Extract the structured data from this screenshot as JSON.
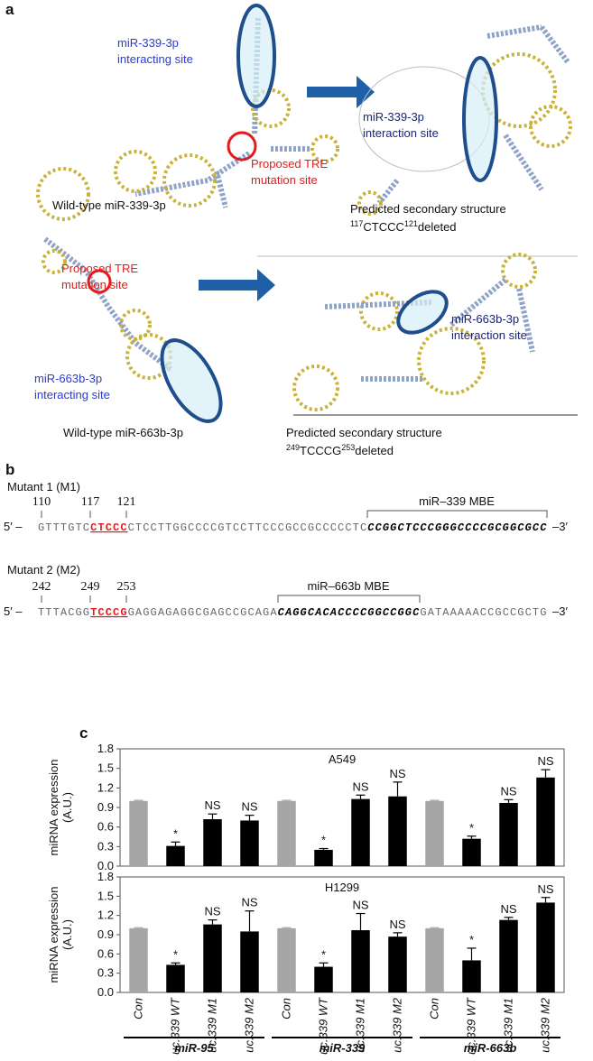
{
  "panel_a": {
    "label": "a",
    "row1": {
      "left_site": [
        "miR-339-3p",
        "interacting site"
      ],
      "tre": [
        "Proposed TRE",
        "mutation site"
      ],
      "wild_type": "Wild-type miR-339-3p",
      "right_site": [
        "miR-339-3p",
        "interaction site"
      ],
      "predicted": "Predicted secondary structure",
      "deleted": {
        "start": "117",
        "seq": "CTCCC",
        "end": "121",
        "suffix": "deleted"
      }
    },
    "row2": {
      "tre": [
        "Proposed TRE",
        "mutation site"
      ],
      "left_site": [
        "miR-663b-3p",
        "interacting site"
      ],
      "wild_type": "Wild-type miR-663b-3p",
      "right_site": [
        "miR-663b-3p",
        "interaction site"
      ],
      "predicted": "Predicted secondary structure",
      "deleted": {
        "start": "249",
        "seq": "TCCCG",
        "end": "253",
        "suffix": "deleted"
      }
    }
  },
  "panel_b": {
    "label": "b",
    "mutants": [
      {
        "title": "Mutant 1 (M1)",
        "positions": [
          "110",
          "117",
          "121"
        ],
        "mbe": "miR–339 MBE",
        "five": "5′ –",
        "three": "–3′",
        "parts": [
          "GTTTGTC",
          "CTCCC",
          "CTCCTTGGCCCCGTCCTTCCCGCCGCCCCCTC",
          "CCGGCTCCCGGGCCCCGCGGCGCC"
        ]
      },
      {
        "title": "Mutant 2 (M2)",
        "positions": [
          "242",
          "249",
          "253"
        ],
        "mbe": "miR–663b MBE",
        "five": "5′ –",
        "three": "–3′",
        "parts": [
          "TTTACGG",
          "TCCCG",
          "GAGGAGAGGCGAGCCGCAGA",
          "CAGGCACACCCCGGCCGGC",
          "GATAAAAACCGCCGCTG"
        ]
      }
    ]
  },
  "panel_c": {
    "label": "c"
  },
  "chart_data": [
    {
      "type": "bar",
      "title": "A549",
      "y_label": [
        "miRNA expression",
        "(A.U.)"
      ],
      "values": [
        1.0,
        0.31,
        0.72,
        0.7,
        1.0,
        0.25,
        1.03,
        1.07,
        1.0,
        0.42,
        0.97,
        1.36
      ],
      "errors": [
        0.01,
        0.06,
        0.08,
        0.08,
        0.01,
        0.02,
        0.06,
        0.22,
        0.01,
        0.04,
        0.05,
        0.12
      ],
      "annotations": [
        null,
        "*",
        "NS",
        "NS",
        null,
        "*",
        "NS",
        "NS",
        null,
        "*",
        "NS",
        "NS"
      ],
      "colors": [
        "#a6a6a6",
        "#000000",
        "#000000",
        "#000000",
        "#a6a6a6",
        "#000000",
        "#000000",
        "#000000",
        "#a6a6a6",
        "#000000",
        "#000000",
        "#000000"
      ],
      "ylim": [
        0,
        1.8
      ],
      "yticks": [
        {
          "value": 0,
          "label": "0.0"
        },
        0.3,
        0.6,
        0.9,
        1.2,
        1.5,
        1.8
      ]
    },
    {
      "type": "bar",
      "title": "H1299",
      "y_label": [
        "miRNA expression",
        "(A.U.)"
      ],
      "categories": [
        "Con",
        "uc.339 WT",
        "uc.339 M1",
        "uc.339 M2",
        "Con",
        "uc.339 WT",
        "uc.339 M1",
        "uc.339 M2",
        "Con",
        "uc.339 WT",
        "uc.339 M1",
        "uc.339 M2"
      ],
      "groups": [
        "miR-95",
        "miR-339",
        "miR-663b"
      ],
      "values": [
        1.0,
        0.43,
        1.06,
        0.95,
        1.0,
        0.4,
        0.97,
        0.87,
        1.0,
        0.5,
        1.13,
        1.4
      ],
      "errors": [
        0.01,
        0.03,
        0.07,
        0.32,
        0.01,
        0.06,
        0.26,
        0.06,
        0.01,
        0.19,
        0.04,
        0.08
      ],
      "annotations": [
        null,
        "*",
        "NS",
        "NS",
        null,
        "*",
        "NS",
        "NS",
        null,
        "*",
        "NS",
        "NS"
      ],
      "colors": [
        "#a6a6a6",
        "#000000",
        "#000000",
        "#000000",
        "#a6a6a6",
        "#000000",
        "#000000",
        "#000000",
        "#a6a6a6",
        "#000000",
        "#000000",
        "#000000"
      ],
      "ylim": [
        0,
        1.8
      ],
      "yticks": [
        {
          "value": 0,
          "label": "0.0"
        },
        0.3,
        0.6,
        0.9,
        1.2,
        1.5,
        1.8
      ]
    }
  ]
}
